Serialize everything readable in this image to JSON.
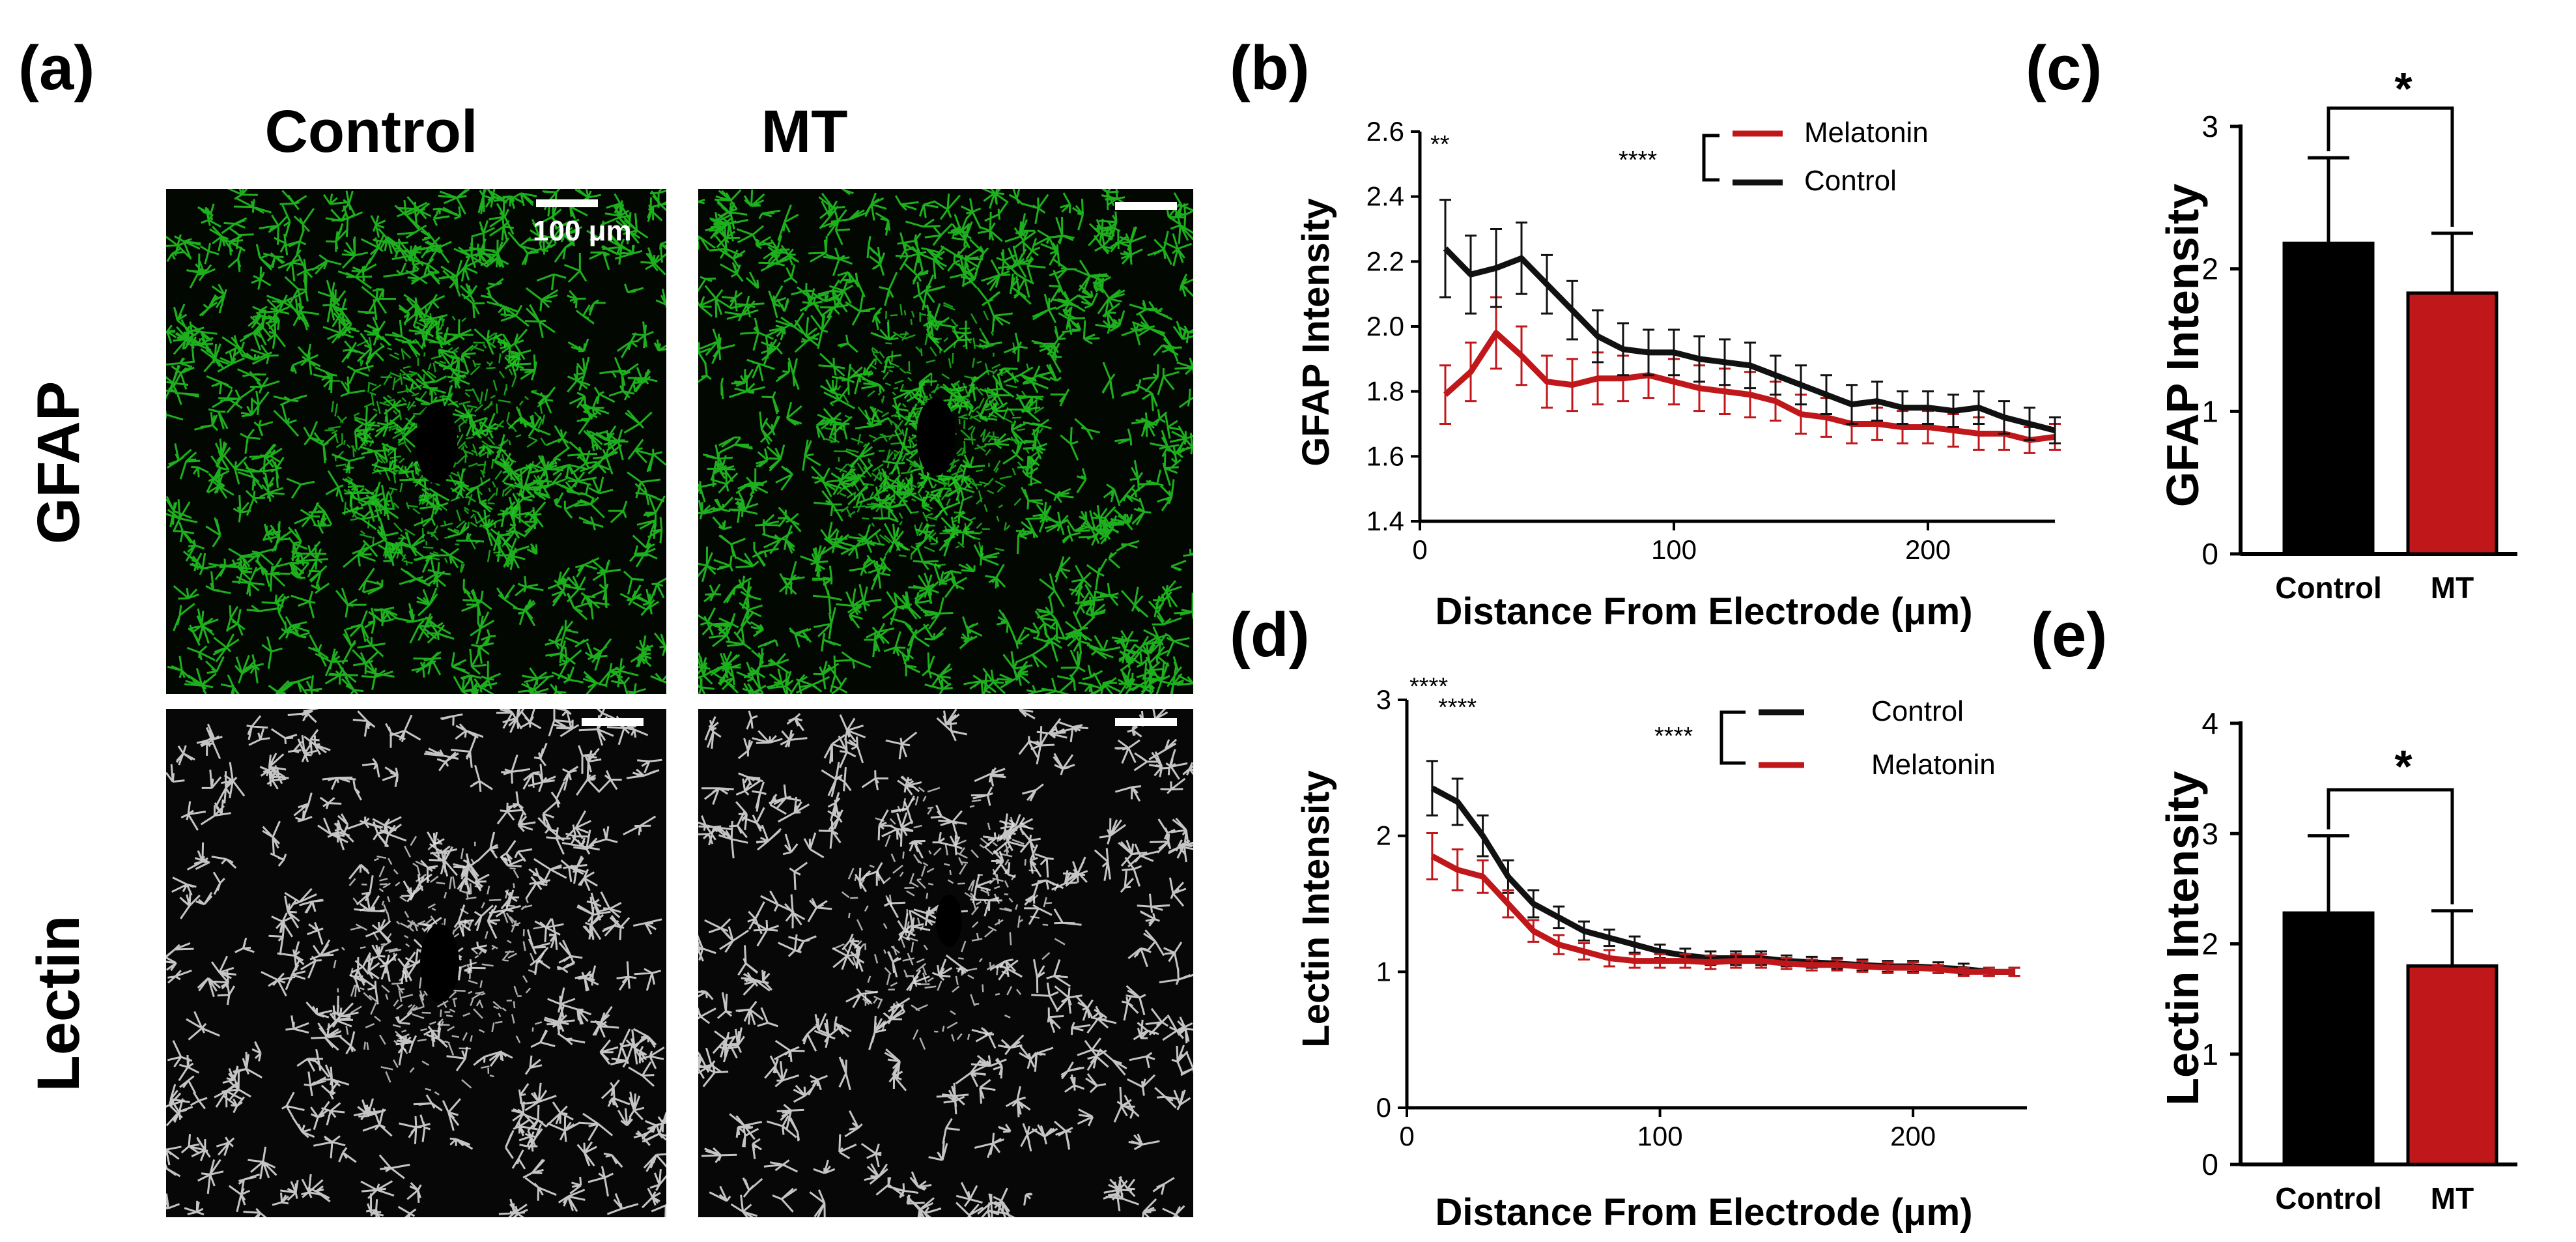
{
  "panel_labels": {
    "a": "(a)",
    "b": "(b)",
    "c": "(c)",
    "d": "(d)",
    "e": "(e)"
  },
  "panel_a": {
    "columns": [
      "Control",
      "MT"
    ],
    "rows": [
      "GFAP",
      "Lectin"
    ],
    "scale_bar_label": "100 μm",
    "gfap_color": "#22cc22",
    "lectin_color": "#e6e6e6"
  },
  "chart_data": [
    {
      "id": "b",
      "type": "line",
      "xlabel": "Distance From Electrode (μm)",
      "ylabel": "GFAP Intensity",
      "xlim": [
        0,
        250
      ],
      "ylim": [
        1.4,
        2.6
      ],
      "xticks": [
        0,
        100,
        200
      ],
      "yticks": [
        1.4,
        1.6,
        1.8,
        2.0,
        2.2,
        2.4,
        2.6
      ],
      "ytick_labels": [
        "1.4",
        "1.6",
        "1.8",
        "2.0",
        "2.2",
        "2.4",
        "2.6"
      ],
      "x": [
        10,
        20,
        30,
        40,
        50,
        60,
        70,
        80,
        90,
        100,
        110,
        120,
        130,
        140,
        150,
        160,
        170,
        180,
        190,
        200,
        210,
        220,
        230,
        240,
        250
      ],
      "series": [
        {
          "name": "Melatonin",
          "color": "#c0171b",
          "values": [
            1.79,
            1.86,
            1.98,
            1.91,
            1.83,
            1.82,
            1.84,
            1.84,
            1.85,
            1.83,
            1.81,
            1.8,
            1.79,
            1.77,
            1.73,
            1.72,
            1.7,
            1.7,
            1.69,
            1.69,
            1.68,
            1.67,
            1.67,
            1.65,
            1.66
          ],
          "errors": [
            0.09,
            0.09,
            0.11,
            0.09,
            0.08,
            0.08,
            0.08,
            0.07,
            0.07,
            0.07,
            0.07,
            0.07,
            0.07,
            0.06,
            0.06,
            0.06,
            0.06,
            0.05,
            0.05,
            0.05,
            0.05,
            0.05,
            0.05,
            0.04,
            0.04
          ]
        },
        {
          "name": "Control",
          "color": "#111111",
          "values": [
            2.24,
            2.16,
            2.18,
            2.21,
            2.13,
            2.05,
            1.97,
            1.93,
            1.92,
            1.92,
            1.9,
            1.89,
            1.88,
            1.85,
            1.82,
            1.79,
            1.76,
            1.77,
            1.75,
            1.75,
            1.74,
            1.75,
            1.72,
            1.7,
            1.68
          ],
          "errors": [
            0.15,
            0.12,
            0.12,
            0.11,
            0.09,
            0.09,
            0.08,
            0.08,
            0.07,
            0.07,
            0.07,
            0.07,
            0.07,
            0.06,
            0.06,
            0.06,
            0.06,
            0.06,
            0.05,
            0.05,
            0.05,
            0.05,
            0.05,
            0.05,
            0.04
          ]
        }
      ],
      "legend": [
        "Melatonin",
        "Control"
      ],
      "annotations": [
        "**",
        "****"
      ]
    },
    {
      "id": "c",
      "type": "bar",
      "ylabel": "GFAP Intensity",
      "categories": [
        "Control",
        "MT"
      ],
      "values": [
        2.18,
        1.83
      ],
      "errors": [
        0.6,
        0.42
      ],
      "colors": [
        "#000000",
        "#c0171b"
      ],
      "ylim": [
        0,
        3
      ],
      "yticks": [
        0,
        1,
        2,
        3
      ],
      "ytick_labels": [
        "0",
        "1",
        "2",
        "3"
      ],
      "annotation": "*"
    },
    {
      "id": "d",
      "type": "line",
      "xlabel": "Distance From Electrode (μm)",
      "ylabel": "Lectin Intensity",
      "xlim": [
        0,
        245
      ],
      "ylim": [
        0,
        3
      ],
      "xticks": [
        0,
        100,
        200
      ],
      "yticks": [
        0,
        1,
        2,
        3
      ],
      "ytick_labels": [
        "0",
        "1",
        "2",
        "3"
      ],
      "x": [
        10,
        20,
        30,
        40,
        50,
        60,
        70,
        80,
        90,
        100,
        110,
        120,
        130,
        140,
        150,
        160,
        170,
        180,
        190,
        200,
        210,
        220,
        230,
        240
      ],
      "series": [
        {
          "name": "Control",
          "color": "#111111",
          "values": [
            2.35,
            2.25,
            2.0,
            1.7,
            1.5,
            1.4,
            1.3,
            1.25,
            1.2,
            1.15,
            1.12,
            1.1,
            1.1,
            1.1,
            1.08,
            1.07,
            1.06,
            1.05,
            1.04,
            1.04,
            1.03,
            1.02,
            1.0,
            1.0
          ],
          "errors": [
            0.2,
            0.17,
            0.15,
            0.12,
            0.1,
            0.08,
            0.07,
            0.06,
            0.06,
            0.05,
            0.05,
            0.05,
            0.05,
            0.05,
            0.04,
            0.04,
            0.04,
            0.04,
            0.04,
            0.04,
            0.04,
            0.04,
            0.03,
            0.03
          ]
        },
        {
          "name": "Melatonin",
          "color": "#c0171b",
          "values": [
            1.85,
            1.75,
            1.7,
            1.5,
            1.3,
            1.2,
            1.15,
            1.1,
            1.08,
            1.08,
            1.08,
            1.07,
            1.08,
            1.08,
            1.06,
            1.05,
            1.05,
            1.04,
            1.03,
            1.03,
            1.02,
            1.0,
            1.0,
            1.0
          ],
          "errors": [
            0.17,
            0.15,
            0.12,
            0.1,
            0.08,
            0.07,
            0.06,
            0.06,
            0.05,
            0.05,
            0.05,
            0.05,
            0.05,
            0.05,
            0.04,
            0.04,
            0.04,
            0.04,
            0.04,
            0.04,
            0.03,
            0.03,
            0.03,
            0.03
          ]
        }
      ],
      "legend": [
        "Control",
        "Melatonin"
      ],
      "annotations": [
        "****",
        "****",
        "****"
      ]
    },
    {
      "id": "e",
      "type": "bar",
      "ylabel": "Lectin Intensity",
      "categories": [
        "Control",
        "MT"
      ],
      "values": [
        2.28,
        1.8
      ],
      "errors": [
        0.7,
        0.5
      ],
      "colors": [
        "#000000",
        "#c0171b"
      ],
      "ylim": [
        0,
        4
      ],
      "yticks": [
        0,
        1,
        2,
        3,
        4
      ],
      "ytick_labels": [
        "0",
        "1",
        "2",
        "3",
        "4"
      ],
      "annotation": "*"
    }
  ]
}
